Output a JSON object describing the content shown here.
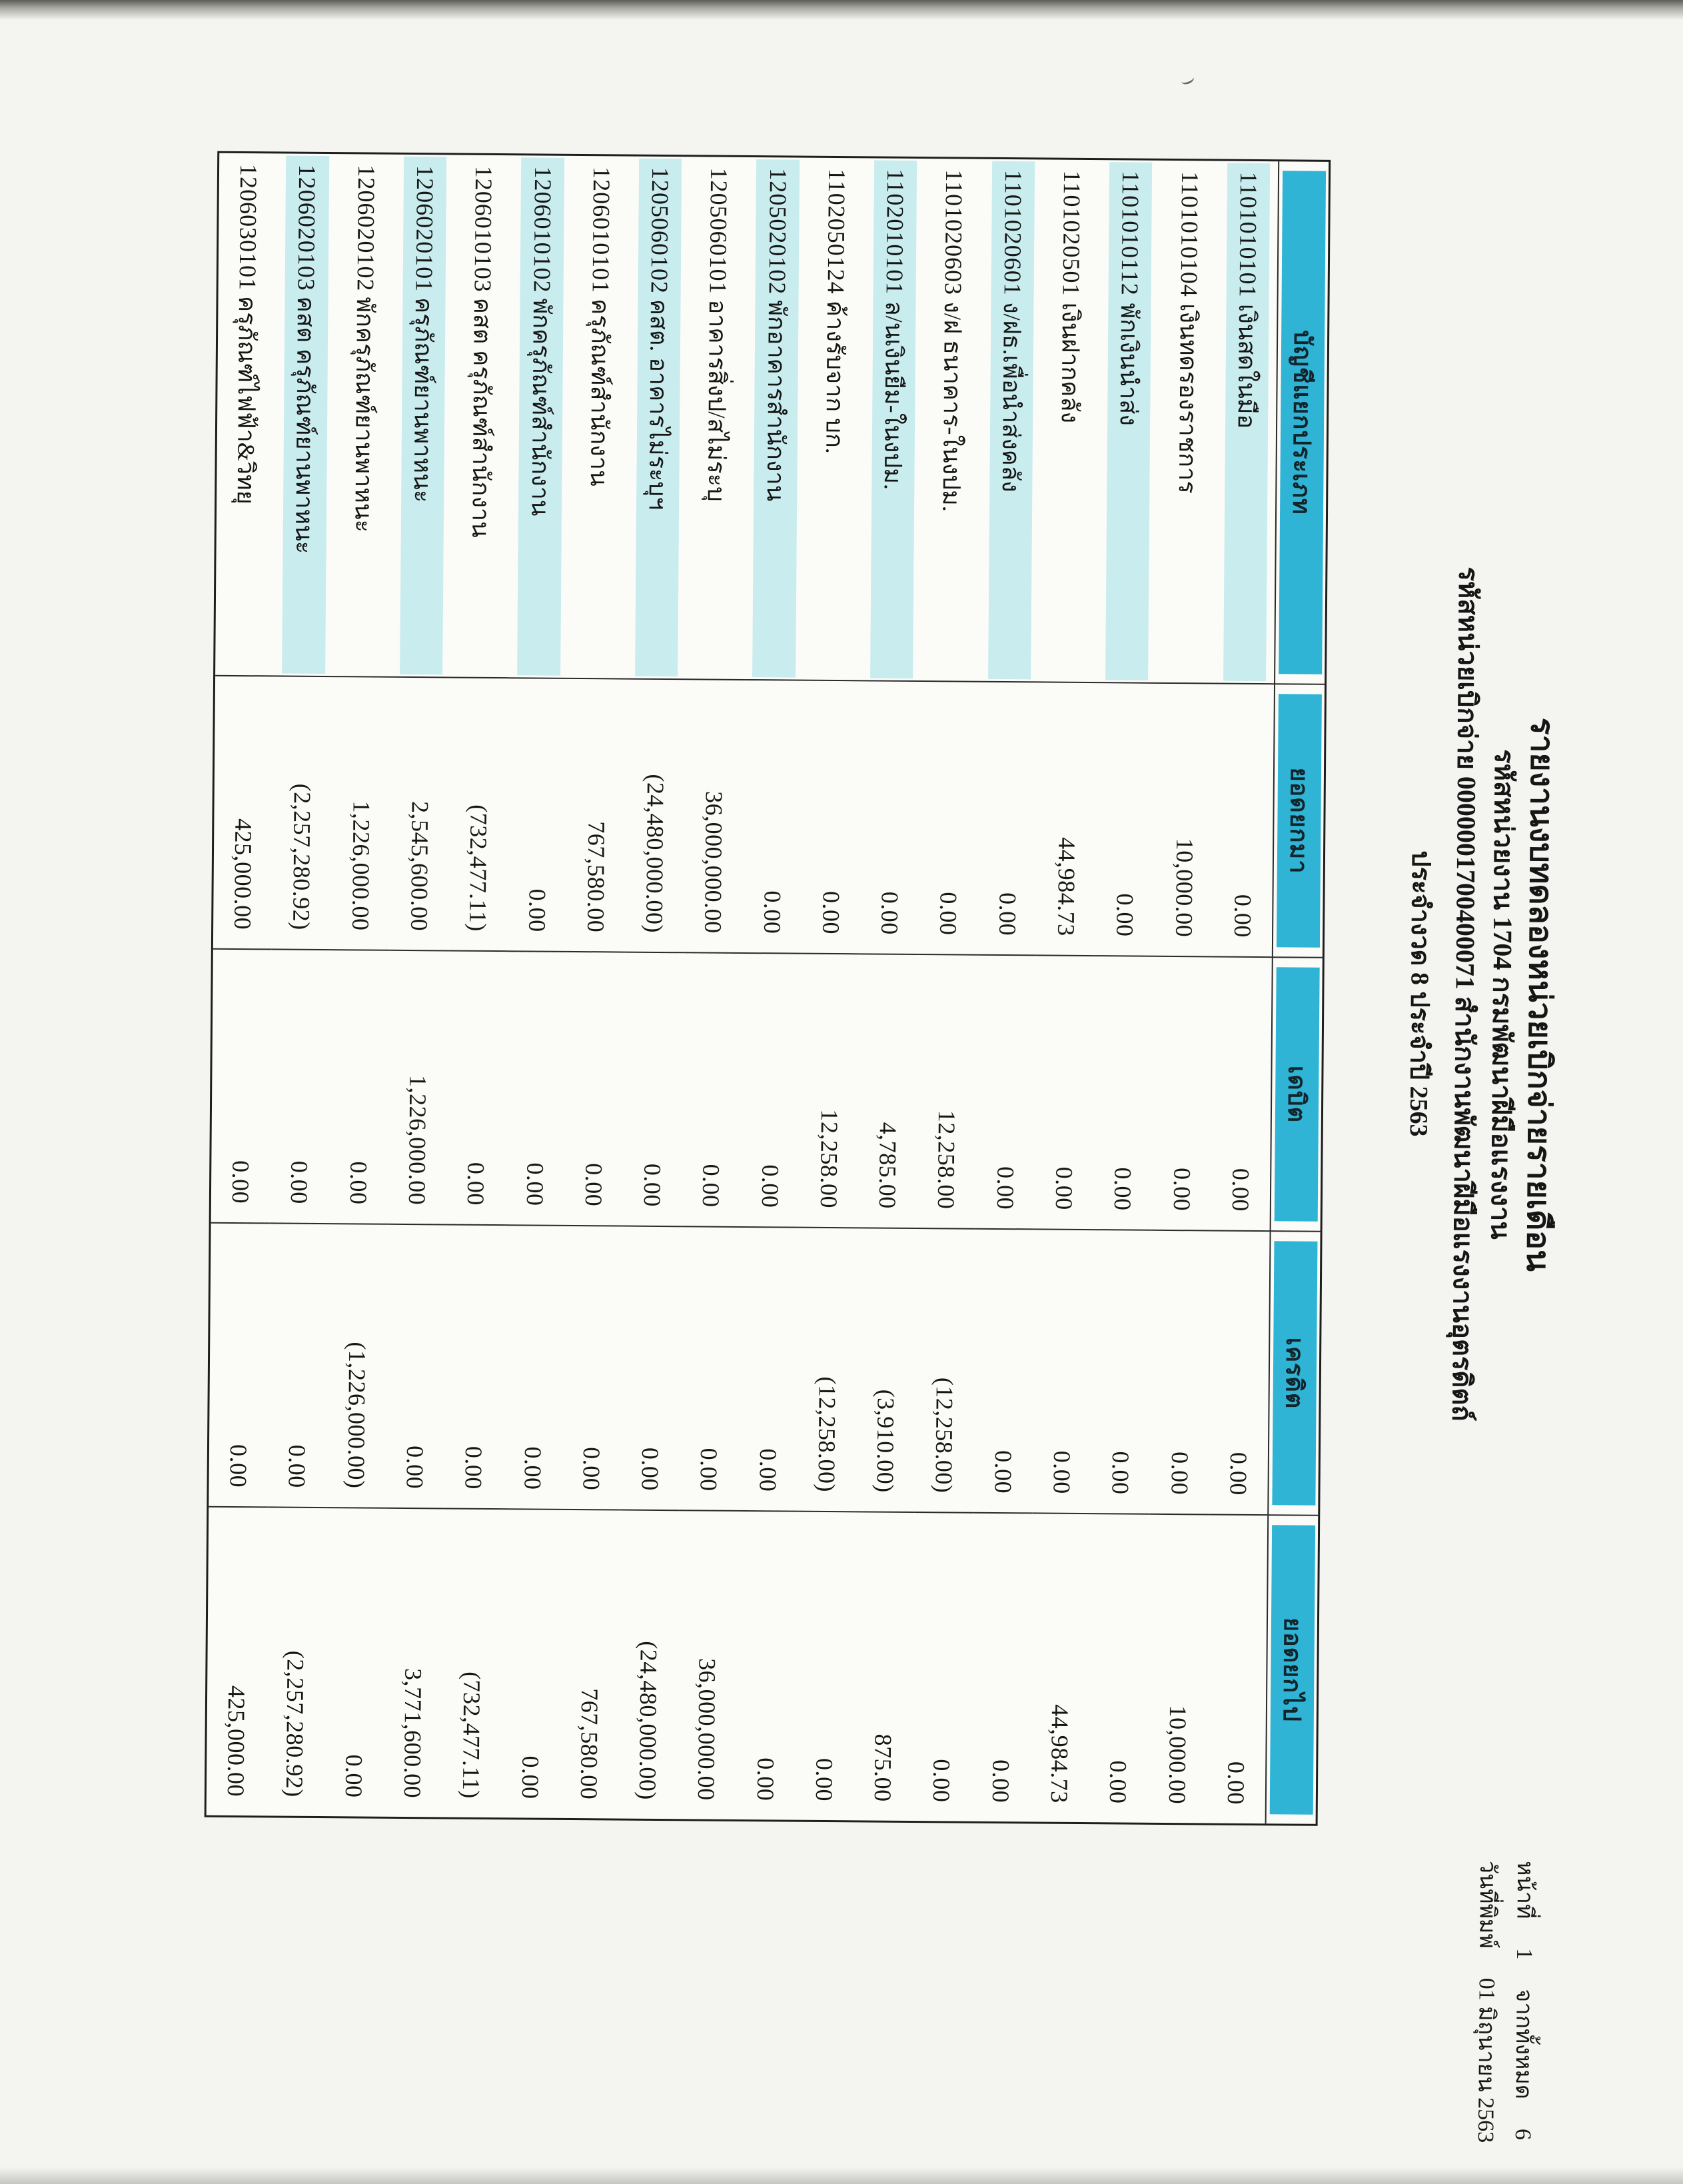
{
  "colors": {
    "header_cyan": "#2fb4d6",
    "row_stripe": "#c9ecee",
    "paper": "#f4f5f1",
    "ink": "#161616"
  },
  "header": {
    "line1": "รายงานงบทดลองหน่วยเบิกจ่ายรายเดือน",
    "line2": "รหัสหน่วยงาน 1704 กรมพัฒนาฝีมือแรงงาน",
    "line3": "รหัสหน่วยเบิกจ่าย 0000001700400071 สำนักงานพัฒนาฝีมือแรงงานอุตรดิตถ์",
    "line4": "ประจำงวด 8 ประจำปี 2563"
  },
  "page_meta": {
    "page_label": "หน้าที่",
    "page_number": "1",
    "of_label": "จากทั้งหมด",
    "total_pages": "6",
    "print_label": "วันที่พิมพ์",
    "print_date": "01 มิถุนายน 2563"
  },
  "table": {
    "headers": [
      "บัญชีแยกประเภท",
      "ยอดยกมา",
      "เดบิต",
      "เครดิต",
      "ยอดยกไป"
    ],
    "rows": [
      {
        "code": "1101010101",
        "name": "เงินสดในมือ",
        "opening": "0.00",
        "debit": "0.00",
        "credit": "0.00",
        "closing": "0.00"
      },
      {
        "code": "1101010104",
        "name": "เงินทดรองราชการ",
        "opening": "10,000.00",
        "debit": "0.00",
        "credit": "0.00",
        "closing": "10,000.00"
      },
      {
        "code": "1101010112",
        "name": "พักเงินนำส่ง",
        "opening": "0.00",
        "debit": "0.00",
        "credit": "0.00",
        "closing": "0.00"
      },
      {
        "code": "1101020501",
        "name": "เงินฝากคลัง",
        "opening": "44,984.73",
        "debit": "0.00",
        "credit": "0.00",
        "closing": "44,984.73"
      },
      {
        "code": "1101020601",
        "name": "ง/ฝธ.เพื่อนำส่งคลัง",
        "opening": "0.00",
        "debit": "0.00",
        "credit": "0.00",
        "closing": "0.00"
      },
      {
        "code": "1101020603",
        "name": "ง/ฝ ธนาคาร-ในงปม.",
        "opening": "0.00",
        "debit": "12,258.00",
        "credit": "(12,258.00)",
        "closing": "0.00"
      },
      {
        "code": "1102010101",
        "name": "ล/นเงินยืม-ในงปม.",
        "opening": "0.00",
        "debit": "4,785.00",
        "credit": "(3,910.00)",
        "closing": "875.00"
      },
      {
        "code": "1102050124",
        "name": "ค้างรับจาก บก.",
        "opening": "0.00",
        "debit": "12,258.00",
        "credit": "(12,258.00)",
        "closing": "0.00"
      },
      {
        "code": "1205020102",
        "name": "พักอาคารสำนักงาน",
        "opening": "0.00",
        "debit": "0.00",
        "credit": "0.00",
        "closing": "0.00"
      },
      {
        "code": "1205060101",
        "name": "อาคารสิ่งป/สไม่ระบุ",
        "opening": "36,000,000.00",
        "debit": "0.00",
        "credit": "0.00",
        "closing": "36,000,000.00"
      },
      {
        "code": "1205060102",
        "name": "คสต. อาคารไม่ระบุฯ",
        "opening": "(24,480,000.00)",
        "debit": "0.00",
        "credit": "0.00",
        "closing": "(24,480,000.00)"
      },
      {
        "code": "1206010101",
        "name": "ครุภัณฑ์สำนักงาน",
        "opening": "767,580.00",
        "debit": "0.00",
        "credit": "0.00",
        "closing": "767,580.00"
      },
      {
        "code": "1206010102",
        "name": "พักครุภัณฑ์สำนักงาน",
        "opening": "0.00",
        "debit": "0.00",
        "credit": "0.00",
        "closing": "0.00"
      },
      {
        "code": "1206010103",
        "name": "คสต ครุภัณฑ์สำนักงาน",
        "opening": "(732,477.11)",
        "debit": "0.00",
        "credit": "0.00",
        "closing": "(732,477.11)"
      },
      {
        "code": "1206020101",
        "name": "ครุภัณฑ์ยานพาหนะ",
        "opening": "2,545,600.00",
        "debit": "1,226,000.00",
        "credit": "0.00",
        "closing": "3,771,600.00"
      },
      {
        "code": "1206020102",
        "name": "พักครุภัณฑ์ยานพาหนะ",
        "opening": "1,226,000.00",
        "debit": "0.00",
        "credit": "(1,226,000.00)",
        "closing": "0.00"
      },
      {
        "code": "1206020103",
        "name": "คสต ครุภัณฑ์ยานพาหนะ",
        "opening": "(2,257,280.92)",
        "debit": "0.00",
        "credit": "0.00",
        "closing": "(2,257,280.92)"
      },
      {
        "code": "1206030101",
        "name": "ครุภัณฑ์ไฟฟ้า&วิทยุ",
        "opening": "425,000.00",
        "debit": "0.00",
        "credit": "0.00",
        "closing": "425,000.00"
      }
    ]
  }
}
